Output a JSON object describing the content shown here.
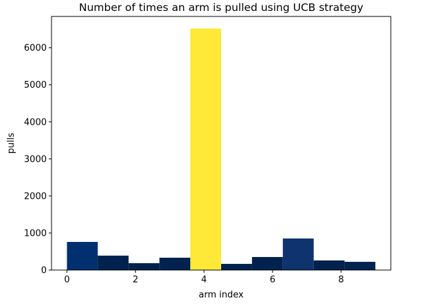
{
  "chart_data": {
    "type": "histogram",
    "title": "Number of times an arm is pulled using UCB strategy",
    "xlabel": "arm index",
    "ylabel": "pulls",
    "bins": [
      0,
      0.9,
      1.8,
      2.7,
      3.6,
      4.5,
      5.4,
      6.3,
      7.2,
      8.1,
      9.0
    ],
    "values": [
      759,
      389,
      185,
      333,
      6519,
      167,
      352,
      852,
      259,
      222
    ],
    "colors": [
      "#00306f",
      "#00224e",
      "#00224e",
      "#00224e",
      "#fee838",
      "#00224e",
      "#00224e",
      "#0e336e",
      "#00224e",
      "#00224e"
    ],
    "xlim": [
      -0.45,
      9.45
    ],
    "xticks": [
      0,
      2,
      4,
      6,
      8
    ],
    "ylim": [
      0,
      6845
    ],
    "yticks": [
      0,
      1000,
      2000,
      3000,
      4000,
      5000,
      6000
    ]
  }
}
